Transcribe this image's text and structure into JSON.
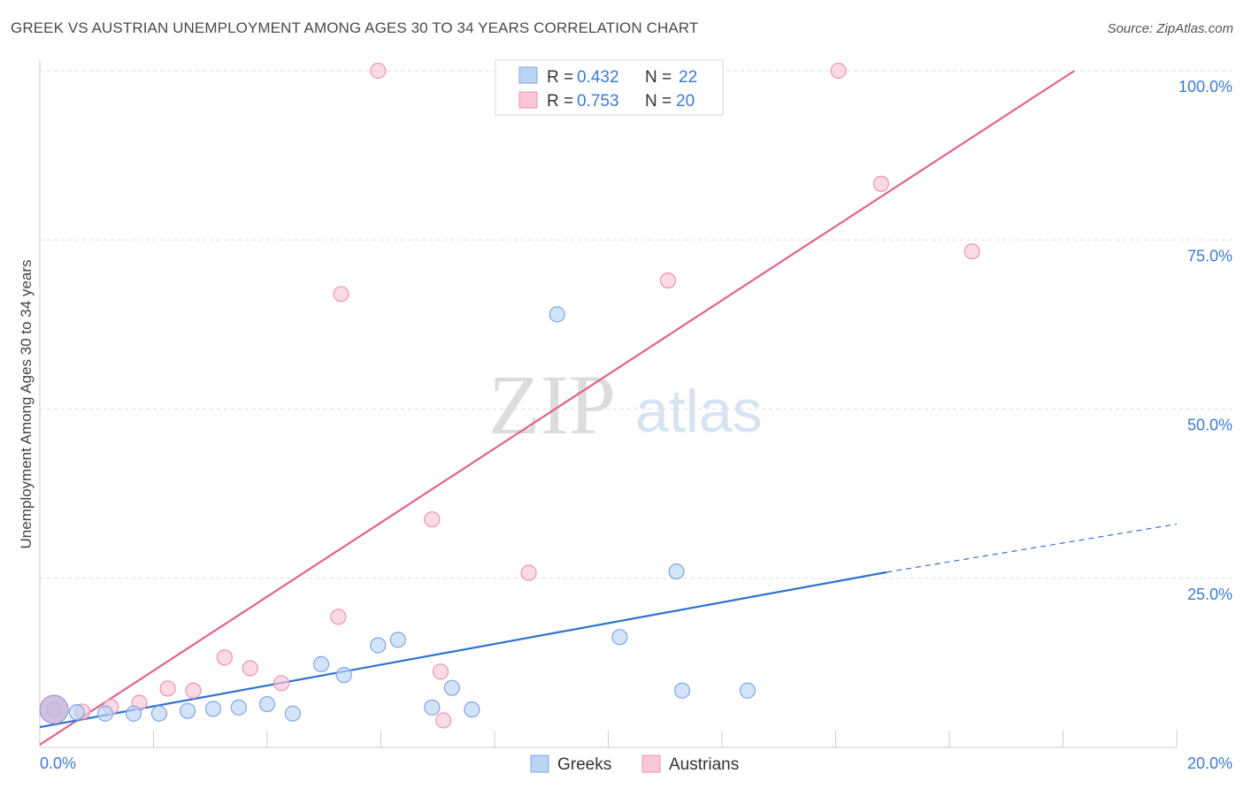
{
  "title": "GREEK VS AUSTRIAN UNEMPLOYMENT AMONG AGES 30 TO 34 YEARS CORRELATION CHART",
  "source": "Source: ZipAtlas.com",
  "watermark": {
    "zip": "ZIP",
    "atlas": "atlas"
  },
  "legend": {
    "greeks": {
      "r_label": "R =",
      "r_value": "0.432",
      "n_label": "N =",
      "n_value": "22"
    },
    "austrians": {
      "r_label": "R =",
      "r_value": "0.753",
      "n_label": "N =",
      "n_value": "20"
    }
  },
  "bottom_legend": {
    "greeks": "Greeks",
    "austrians": "Austrians"
  },
  "colors": {
    "greeks_fill": "#bcd4f4",
    "greeks_stroke": "#7fa8e0",
    "greeks_line": "#2f72d0",
    "austrians_fill": "#f8c6d6",
    "austrians_stroke": "#ec94b1",
    "austrians_line": "#e0628f",
    "tick": "#3d7ad1",
    "grid": "#dddddd"
  },
  "chart_data": {
    "type": "scatter",
    "ylabel": "Unemployment Among Ages 30 to 34 years",
    "xlabel": "",
    "xlim": [
      0,
      20
    ],
    "ylim": [
      0,
      100
    ],
    "x_tick_labels": {
      "min": "0.0%",
      "max": "20.0%"
    },
    "y_ticks": [
      {
        "value": 25,
        "label": "25.0%"
      },
      {
        "value": 50,
        "label": "50.0%"
      },
      {
        "value": 75,
        "label": "75.0%"
      },
      {
        "value": 100,
        "label": "100.0%"
      }
    ],
    "series": [
      {
        "name": "Greeks",
        "points": [
          {
            "x": 0.25,
            "y": 5.6,
            "big": true
          },
          {
            "x": 0.65,
            "y": 5.2
          },
          {
            "x": 1.15,
            "y": 5.0
          },
          {
            "x": 1.65,
            "y": 5.0
          },
          {
            "x": 2.1,
            "y": 5.0
          },
          {
            "x": 2.6,
            "y": 5.4
          },
          {
            "x": 3.05,
            "y": 5.7
          },
          {
            "x": 3.5,
            "y": 5.9
          },
          {
            "x": 4.0,
            "y": 6.4
          },
          {
            "x": 4.45,
            "y": 5.0
          },
          {
            "x": 4.95,
            "y": 12.3
          },
          {
            "x": 5.35,
            "y": 10.7
          },
          {
            "x": 5.95,
            "y": 15.1
          },
          {
            "x": 6.3,
            "y": 15.9
          },
          {
            "x": 6.9,
            "y": 5.9
          },
          {
            "x": 7.25,
            "y": 8.8
          },
          {
            "x": 7.6,
            "y": 5.6
          },
          {
            "x": 9.1,
            "y": 64.0
          },
          {
            "x": 10.2,
            "y": 16.3
          },
          {
            "x": 11.2,
            "y": 26.0
          },
          {
            "x": 11.3,
            "y": 8.4
          },
          {
            "x": 12.45,
            "y": 8.4
          }
        ],
        "trend": {
          "x0": 0,
          "y0": 3.0,
          "x1": 14.9,
          "y1": 25.9,
          "dash_to_x": 20,
          "dash_to_y": 33.0
        }
      },
      {
        "name": "Austrians",
        "points": [
          {
            "x": 0.25,
            "y": 5.6
          },
          {
            "x": 0.75,
            "y": 5.3
          },
          {
            "x": 1.25,
            "y": 6.0
          },
          {
            "x": 1.75,
            "y": 6.6
          },
          {
            "x": 2.25,
            "y": 8.7
          },
          {
            "x": 2.7,
            "y": 8.4
          },
          {
            "x": 3.25,
            "y": 13.3
          },
          {
            "x": 3.7,
            "y": 11.7
          },
          {
            "x": 4.25,
            "y": 9.5
          },
          {
            "x": 5.3,
            "y": 67.0
          },
          {
            "x": 5.25,
            "y": 19.3
          },
          {
            "x": 5.95,
            "y": 100.0
          },
          {
            "x": 6.9,
            "y": 33.7
          },
          {
            "x": 7.05,
            "y": 11.2
          },
          {
            "x": 7.1,
            "y": 4.0
          },
          {
            "x": 8.6,
            "y": 25.8
          },
          {
            "x": 11.05,
            "y": 69.0
          },
          {
            "x": 14.05,
            "y": 100.0
          },
          {
            "x": 14.8,
            "y": 83.3
          },
          {
            "x": 16.4,
            "y": 73.3
          }
        ],
        "trend": {
          "x0": 0,
          "y0": 0.4,
          "x1": 18.2,
          "y1": 100.0
        }
      }
    ]
  }
}
